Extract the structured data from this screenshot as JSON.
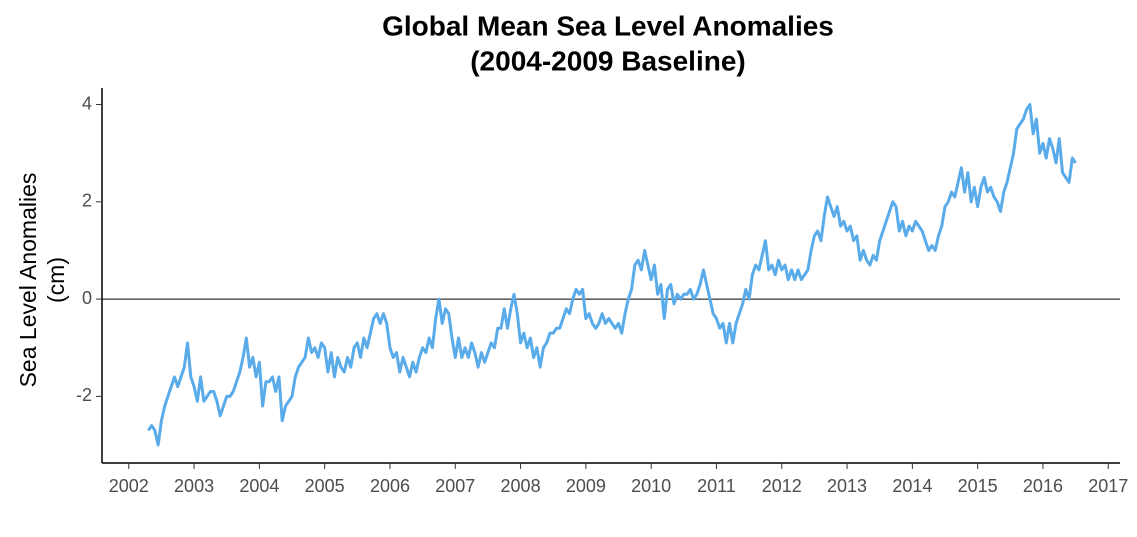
{
  "chart_data": {
    "type": "line",
    "title": [
      "Global Mean Sea Level Anomalies",
      "(2004-2009 Baseline)"
    ],
    "y_label": [
      "Sea Level Anomalies",
      "(cm)"
    ],
    "xlim": [
      2001.59,
      2017.18
    ],
    "xticks": [
      2002,
      2003,
      2004,
      2005,
      2006,
      2007,
      2008,
      2009,
      2010,
      2011,
      2012,
      2013,
      2014,
      2015,
      2016,
      2017
    ],
    "ylim": [
      -3.37,
      4.34
    ],
    "yticks": [
      -2,
      0,
      2,
      4
    ],
    "hline": 0,
    "series": [
      {
        "color": "#5aabea",
        "x": [
          2002.3,
          2002.35,
          2002.4,
          2002.45,
          2002.5,
          2002.55,
          2002.6,
          2002.65,
          2002.7,
          2002.75,
          2002.8,
          2002.85,
          2002.9,
          2002.95,
          2003.0,
          2003.05,
          2003.1,
          2003.15,
          2003.2,
          2003.25,
          2003.3,
          2003.35,
          2003.4,
          2003.45,
          2003.5,
          2003.55,
          2003.6,
          2003.65,
          2003.7,
          2003.75,
          2003.8,
          2003.85,
          2003.9,
          2003.95,
          2004.0,
          2004.05,
          2004.1,
          2004.15,
          2004.2,
          2004.25,
          2004.3,
          2004.35,
          2004.4,
          2004.45,
          2004.5,
          2004.55,
          2004.6,
          2004.65,
          2004.7,
          2004.75,
          2004.8,
          2004.85,
          2004.9,
          2004.95,
          2005.0,
          2005.05,
          2005.1,
          2005.15,
          2005.2,
          2005.25,
          2005.3,
          2005.35,
          2005.4,
          2005.45,
          2005.5,
          2005.55,
          2005.6,
          2005.65,
          2005.7,
          2005.75,
          2005.8,
          2005.85,
          2005.9,
          2005.95,
          2006.0,
          2006.05,
          2006.1,
          2006.15,
          2006.2,
          2006.25,
          2006.3,
          2006.35,
          2006.4,
          2006.45,
          2006.5,
          2006.55,
          2006.6,
          2006.65,
          2006.7,
          2006.75,
          2006.8,
          2006.85,
          2006.9,
          2006.95,
          2007.0,
          2007.05,
          2007.1,
          2007.15,
          2007.2,
          2007.25,
          2007.3,
          2007.35,
          2007.4,
          2007.45,
          2007.5,
          2007.55,
          2007.6,
          2007.65,
          2007.7,
          2007.75,
          2007.8,
          2007.85,
          2007.9,
          2007.95,
          2008.0,
          2008.05,
          2008.1,
          2008.15,
          2008.2,
          2008.25,
          2008.3,
          2008.35,
          2008.4,
          2008.45,
          2008.5,
          2008.55,
          2008.6,
          2008.65,
          2008.7,
          2008.75,
          2008.8,
          2008.85,
          2008.9,
          2008.95,
          2009.0,
          2009.05,
          2009.1,
          2009.15,
          2009.2,
          2009.25,
          2009.3,
          2009.35,
          2009.4,
          2009.45,
          2009.5,
          2009.55,
          2009.6,
          2009.65,
          2009.7,
          2009.75,
          2009.8,
          2009.85,
          2009.9,
          2009.95,
          2010.0,
          2010.05,
          2010.1,
          2010.15,
          2010.2,
          2010.25,
          2010.3,
          2010.35,
          2010.4,
          2010.45,
          2010.5,
          2010.55,
          2010.6,
          2010.65,
          2010.7,
          2010.75,
          2010.8,
          2010.85,
          2010.9,
          2010.95,
          2011.0,
          2011.05,
          2011.1,
          2011.15,
          2011.2,
          2011.25,
          2011.3,
          2011.35,
          2011.4,
          2011.45,
          2011.5,
          2011.55,
          2011.6,
          2011.65,
          2011.7,
          2011.75,
          2011.8,
          2011.85,
          2011.9,
          2011.95,
          2012.0,
          2012.05,
          2012.1,
          2012.15,
          2012.2,
          2012.25,
          2012.3,
          2012.35,
          2012.4,
          2012.45,
          2012.5,
          2012.55,
          2012.6,
          2012.65,
          2012.7,
          2012.75,
          2012.8,
          2012.85,
          2012.9,
          2012.95,
          2013.0,
          2013.05,
          2013.1,
          2013.15,
          2013.2,
          2013.25,
          2013.3,
          2013.35,
          2013.4,
          2013.45,
          2013.5,
          2013.55,
          2013.6,
          2013.65,
          2013.7,
          2013.75,
          2013.8,
          2013.85,
          2013.9,
          2013.95,
          2014.0,
          2014.05,
          2014.1,
          2014.15,
          2014.2,
          2014.25,
          2014.3,
          2014.35,
          2014.4,
          2014.45,
          2014.5,
          2014.55,
          2014.6,
          2014.65,
          2014.7,
          2014.75,
          2014.8,
          2014.85,
          2014.9,
          2014.95,
          2015.0,
          2015.05,
          2015.1,
          2015.15,
          2015.2,
          2015.25,
          2015.3,
          2015.35,
          2015.4,
          2015.45,
          2015.5,
          2015.55,
          2015.6,
          2015.65,
          2015.7,
          2015.75,
          2015.8,
          2015.85,
          2015.9,
          2015.95,
          2016.0,
          2016.05,
          2016.1,
          2016.15,
          2016.2,
          2016.25,
          2016.3,
          2016.35,
          2016.4,
          2016.45,
          2016.5
        ],
        "values": [
          -2.7,
          -2.6,
          -2.7,
          -3.0,
          -2.5,
          -2.2,
          -2.0,
          -1.8,
          -1.6,
          -1.8,
          -1.6,
          -1.4,
          -0.9,
          -1.6,
          -1.8,
          -2.1,
          -1.6,
          -2.1,
          -2.0,
          -1.9,
          -1.9,
          -2.1,
          -2.4,
          -2.2,
          -2.0,
          -2.0,
          -1.9,
          -1.7,
          -1.5,
          -1.2,
          -0.8,
          -1.4,
          -1.2,
          -1.6,
          -1.3,
          -2.2,
          -1.7,
          -1.7,
          -1.6,
          -1.9,
          -1.6,
          -2.5,
          -2.2,
          -2.1,
          -2.0,
          -1.6,
          -1.4,
          -1.3,
          -1.2,
          -0.8,
          -1.1,
          -1.0,
          -1.2,
          -0.9,
          -1.0,
          -1.5,
          -1.1,
          -1.6,
          -1.2,
          -1.4,
          -1.5,
          -1.2,
          -1.4,
          -1.0,
          -0.9,
          -1.2,
          -0.8,
          -1.0,
          -0.7,
          -0.4,
          -0.3,
          -0.5,
          -0.3,
          -0.5,
          -1.0,
          -1.2,
          -1.1,
          -1.5,
          -1.2,
          -1.4,
          -1.6,
          -1.3,
          -1.5,
          -1.2,
          -1.0,
          -1.1,
          -0.8,
          -1.0,
          -0.4,
          0.0,
          -0.5,
          -0.2,
          -0.3,
          -0.8,
          -1.2,
          -0.8,
          -1.2,
          -1.0,
          -1.2,
          -0.9,
          -1.1,
          -1.4,
          -1.1,
          -1.3,
          -1.1,
          -0.9,
          -1.0,
          -0.6,
          -0.6,
          -0.2,
          -0.6,
          -0.2,
          0.1,
          -0.3,
          -0.9,
          -0.7,
          -1.0,
          -0.8,
          -1.2,
          -1.0,
          -1.4,
          -1.0,
          -0.9,
          -0.7,
          -0.7,
          -0.6,
          -0.6,
          -0.4,
          -0.2,
          -0.3,
          0.0,
          0.2,
          0.1,
          0.2,
          -0.4,
          -0.3,
          -0.5,
          -0.6,
          -0.5,
          -0.3,
          -0.5,
          -0.4,
          -0.5,
          -0.6,
          -0.5,
          -0.7,
          -0.3,
          0.0,
          0.2,
          0.7,
          0.8,
          0.6,
          1.0,
          0.7,
          0.4,
          0.7,
          0.1,
          0.3,
          -0.4,
          0.2,
          0.3,
          -0.1,
          0.1,
          0.0,
          0.1,
          0.1,
          0.2,
          0.0,
          0.1,
          0.3,
          0.6,
          0.3,
          0.0,
          -0.3,
          -0.4,
          -0.6,
          -0.5,
          -0.9,
          -0.5,
          -0.9,
          -0.5,
          -0.3,
          -0.1,
          0.2,
          0.0,
          0.5,
          0.7,
          0.6,
          0.9,
          1.2,
          0.6,
          0.7,
          0.5,
          0.8,
          0.6,
          0.7,
          0.4,
          0.6,
          0.4,
          0.6,
          0.4,
          0.5,
          0.6,
          1.0,
          1.3,
          1.4,
          1.2,
          1.7,
          2.1,
          1.9,
          1.7,
          1.9,
          1.5,
          1.6,
          1.4,
          1.5,
          1.2,
          1.3,
          0.8,
          1.0,
          0.8,
          0.7,
          0.9,
          0.8,
          1.2,
          1.4,
          1.6,
          1.8,
          2.0,
          1.9,
          1.4,
          1.6,
          1.3,
          1.5,
          1.4,
          1.6,
          1.5,
          1.4,
          1.2,
          1.0,
          1.1,
          1.0,
          1.3,
          1.5,
          1.9,
          2.0,
          2.2,
          2.1,
          2.4,
          2.7,
          2.2,
          2.6,
          2.0,
          2.3,
          1.9,
          2.3,
          2.5,
          2.2,
          2.3,
          2.1,
          2.0,
          1.8,
          2.2,
          2.4,
          2.7,
          3.0,
          3.5,
          3.6,
          3.7,
          3.9,
          4.0,
          3.4,
          3.7,
          3.0,
          3.2,
          2.9,
          3.3,
          3.1,
          2.8,
          3.3,
          2.6,
          2.5,
          2.4,
          2.9,
          2.8
        ]
      }
    ]
  }
}
